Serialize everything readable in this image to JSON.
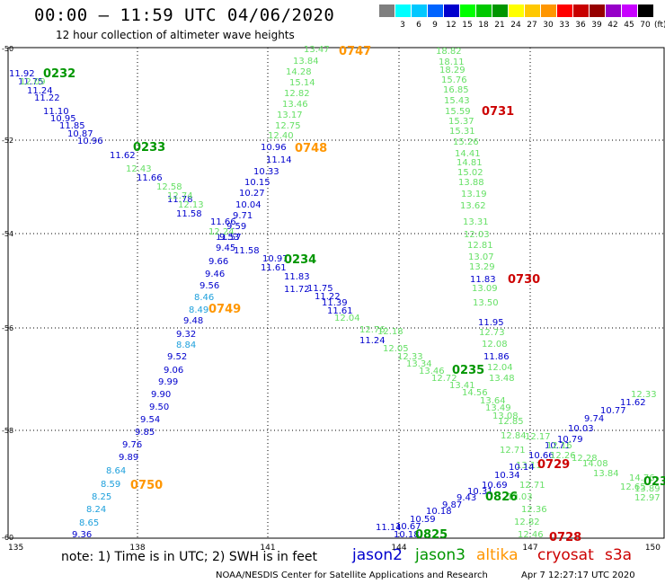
{
  "header": {
    "title": "00:00 – 11:59 UTC 04/06/2020",
    "subtitle": "12 hour collection of altimeter wave heights"
  },
  "scale": {
    "bins": [
      {
        "color": "#7f7f7f",
        "label": ""
      },
      {
        "color": "#00ffff",
        "label": "3"
      },
      {
        "color": "#00c8ff",
        "label": "6"
      },
      {
        "color": "#0064ff",
        "label": "9"
      },
      {
        "color": "#0000cd",
        "label": "12"
      },
      {
        "color": "#00ff00",
        "label": "15"
      },
      {
        "color": "#00c800",
        "label": "18"
      },
      {
        "color": "#009600",
        "label": "21"
      },
      {
        "color": "#ffff00",
        "label": "24"
      },
      {
        "color": "#ffc800",
        "label": "27"
      },
      {
        "color": "#ff9600",
        "label": "30"
      },
      {
        "color": "#ff0000",
        "label": "33"
      },
      {
        "color": "#c80000",
        "label": "36"
      },
      {
        "color": "#960000",
        "label": "39"
      },
      {
        "color": "#9600c8",
        "label": "42"
      },
      {
        "color": "#c800ff",
        "label": "45"
      },
      {
        "color": "#000000",
        "label": "70"
      }
    ],
    "unit": "(ft)"
  },
  "map": {
    "lon_ticks": [
      "135",
      "138",
      "141",
      "144",
      "147",
      "150"
    ],
    "lat_ticks": [
      "-50",
      "-52",
      "-54",
      "-56",
      "-58",
      "-60"
    ]
  },
  "colors": {
    "jason2": "#0000cd",
    "jason3": "#009600",
    "jason3_light": "#66e066",
    "altika": "#ff9600",
    "cryosat": "#cc0000",
    "altika_light": "#1ea0dc"
  },
  "tracks": [
    {
      "id": "jason2_nw",
      "color": "#0000cd",
      "values": [
        "11.92",
        "11.75",
        "11.24",
        "11.22",
        "11.10",
        "10.95",
        "11.85",
        "10.87",
        "10.96",
        "11.62",
        "11.66",
        "11.78",
        "11.58",
        "11.66",
        "11.57",
        "11.58",
        "10.97",
        "11.61",
        "11.83",
        "11.72",
        "11.75",
        "11.22",
        "11.39",
        "11.61",
        "11.24"
      ]
    },
    {
      "id": "jason3_se",
      "color": "#66e066",
      "values": [
        "12.09",
        "12.43",
        "12.58",
        "12.74",
        "12.13",
        "12.24",
        "12.04",
        "12.76",
        "12.18",
        "12.05",
        "12.33",
        "13.34",
        "13.46",
        "12.72",
        "13.41",
        "14.56",
        "13.64",
        "13.49",
        "13.08"
      ]
    },
    {
      "id": "jason2_n",
      "color": "#0000cd",
      "values": [
        "10.96",
        "11.14",
        "10.33",
        "10.15",
        "10.27",
        "10.04",
        "9.71",
        "9.59",
        "9.53",
        "9.45",
        "9.66",
        "9.46",
        "9.56"
      ]
    },
    {
      "id": "jason3_n",
      "color": "#66e066",
      "values": [
        "13.47",
        "13.84",
        "14.28",
        "15.14",
        "12.82",
        "13.46",
        "13.17",
        "12.75",
        "12.40"
      ]
    },
    {
      "id": "altika_s",
      "color": "#1ea0dc",
      "values": [
        "8.46",
        "8.49",
        "8.84",
        "8.64",
        "8.59",
        "8.25",
        "8.24",
        "8.65"
      ]
    },
    {
      "id": "jason2_s",
      "color": "#0000cd",
      "values": [
        "9.48",
        "9.32",
        "9.52",
        "9.06",
        "9.99",
        "9.90",
        "9.50",
        "9.54",
        "9.85",
        "9.76",
        "9.89",
        "9.36"
      ]
    },
    {
      "id": "jason3_col",
      "color": "#66e066",
      "values": [
        "18.82",
        "18.11",
        "18.29",
        "15.76",
        "16.85",
        "15.43",
        "15.59",
        "15.37",
        "15.31",
        "15.26",
        "14.41",
        "14.81",
        "15.02",
        "13.88",
        "13.62",
        "13.19",
        "13.31",
        "12.03",
        "12.81",
        "13.07",
        "13.29",
        "13.09",
        "13.50",
        "12.73",
        "12.08",
        "12.04",
        "13.48",
        "12.85",
        "12.84",
        "12.71",
        "13.11",
        "12.71",
        "12.03",
        "12.36",
        "12.82",
        "12.46"
      ]
    },
    {
      "id": "jason2_col",
      "color": "#0000cd",
      "values": [
        "11.83",
        "11.95",
        "11.86"
      ]
    },
    {
      "id": "jason2_se",
      "color": "#0000cd",
      "values": [
        "11.62",
        "10.77",
        "9.74",
        "10.03",
        "10.79",
        "10.71",
        "10.66",
        "10.14",
        "10.34",
        "10.69",
        "10.31",
        "9.43",
        "9.87",
        "10.18",
        "10.59",
        "10.67",
        "11.14",
        "10.18"
      ]
    },
    {
      "id": "jason3_e",
      "color": "#66e066",
      "values": [
        "12.33",
        "12.17",
        "12.16",
        "12.28",
        "12.26",
        "14.08",
        "13.84",
        "14.76",
        "12.65",
        "13.89",
        "12.97"
      ]
    }
  ],
  "labels": [
    {
      "text": "0232",
      "color": "#009600"
    },
    {
      "text": "0233",
      "color": "#009600"
    },
    {
      "text": "0234",
      "color": "#009600"
    },
    {
      "text": "0235",
      "color": "#009600"
    },
    {
      "text": "0747",
      "color": "#ff9600"
    },
    {
      "text": "0748",
      "color": "#ff9600"
    },
    {
      "text": "0749",
      "color": "#ff9600"
    },
    {
      "text": "0750",
      "color": "#ff9600"
    },
    {
      "text": "0731",
      "color": "#cc0000"
    },
    {
      "text": "0730",
      "color": "#cc0000"
    },
    {
      "text": "0729",
      "color": "#cc0000"
    },
    {
      "text": "0728",
      "color": "#cc0000"
    },
    {
      "text": "0826",
      "color": "#009600"
    },
    {
      "text": "0825",
      "color": "#009600"
    },
    {
      "text": "023",
      "color": "#009600"
    }
  ],
  "footer": {
    "note": "note: 1) Time is in UTC; 2) SWH is in feet",
    "legend": [
      {
        "name": "jason2",
        "color": "#0000cd"
      },
      {
        "name": "jason3",
        "color": "#009600"
      },
      {
        "name": "altika",
        "color": "#ff9600"
      },
      {
        "name": "cryosat",
        "color": "#cc0000"
      },
      {
        "name": "s3a",
        "color": "#cc0000"
      }
    ],
    "credit": "NOAA/NESDIS Center for Satellite Applications and Research",
    "timestamp": "Apr  7 12:27:17 UTC 2020"
  }
}
